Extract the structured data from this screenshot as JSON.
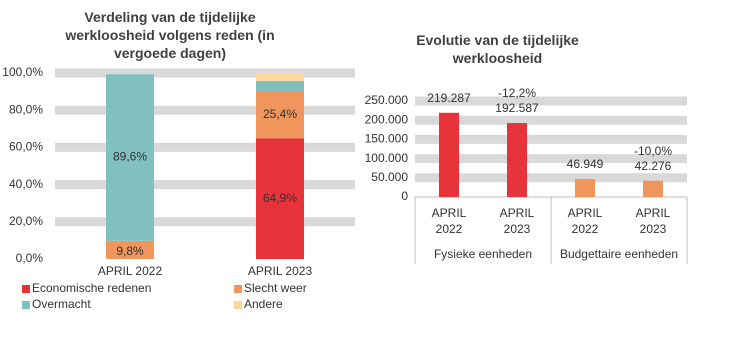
{
  "chart_data": [
    {
      "type": "stacked_bar",
      "title": "Verdeling van de tijdelijke werkloosheid volgens reden (in vergoede dagen)",
      "categories": [
        "APRIL 2022",
        "APRIL 2023"
      ],
      "series": [
        {
          "name": "Economische redenen",
          "color": "#e8333a",
          "values": [
            0,
            64.9
          ],
          "value_labels": [
            null,
            "64,9%"
          ]
        },
        {
          "name": "Slecht weer",
          "color": "#f0955b",
          "values": [
            9.8,
            25.4
          ],
          "value_labels": [
            "9,8%",
            "25,4%"
          ]
        },
        {
          "name": "Overmacht",
          "color": "#80c1c0",
          "values": [
            89.6,
            5.5
          ],
          "value_labels": [
            "89,6%",
            null
          ]
        },
        {
          "name": "Andere",
          "color": "#fcd99a",
          "values": [
            0.6,
            4.2
          ],
          "value_labels": [
            null,
            null
          ]
        }
      ],
      "ylim": [
        0,
        100
      ],
      "yticks": [
        {
          "value": 0,
          "label": "0,0%"
        },
        {
          "value": 20,
          "label": "20,0%"
        },
        {
          "value": 40,
          "label": "40,0%"
        },
        {
          "value": 60,
          "label": "60,0%"
        },
        {
          "value": 80,
          "label": "80,0%"
        },
        {
          "value": 100,
          "label": "100,0%"
        }
      ],
      "grid": true
    },
    {
      "type": "bar",
      "title": "Evolutie van de tijdelijke werkloosheid",
      "categories": [
        "APRIL 2022",
        "APRIL 2023",
        "APRIL 2022",
        "APRIL 2023"
      ],
      "group_labels": [
        "Fysieke eenheden",
        "Budgettaire eenheden"
      ],
      "values": [
        219287,
        192587,
        46949,
        42276
      ],
      "value_labels": [
        "219.287",
        "192.587",
        "46.949",
        "42.276"
      ],
      "change_labels": [
        null,
        "-12,2%",
        null,
        "-10,0%"
      ],
      "colors": [
        "#e8333a",
        "#e8333a",
        "#f0955b",
        "#f0955b"
      ],
      "ylim": [
        0,
        250000
      ],
      "yticks": [
        0,
        {
          "value": 50000,
          "label": "50.000"
        },
        {
          "value": 100000,
          "label": "100.000"
        },
        {
          "value": 150000,
          "label": "150.000"
        },
        {
          "value": 200000,
          "label": "200.000"
        },
        {
          "value": 250000,
          "label": "250.000"
        }
      ],
      "grid": true
    }
  ]
}
